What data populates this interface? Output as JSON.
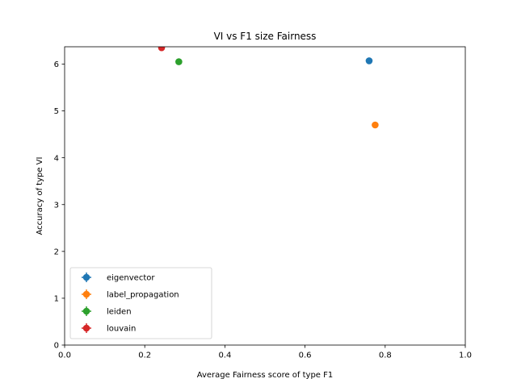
{
  "chart_data": {
    "type": "scatter",
    "title": "VI vs F1 size Fairness",
    "xlabel": "Average Fairness score of type F1",
    "ylabel": "Accuracy of type VI",
    "xlim": [
      0,
      1
    ],
    "ylim": [
      0,
      6.37
    ],
    "xticks": [
      0.0,
      0.2,
      0.4,
      0.6,
      0.8,
      1.0
    ],
    "xtick_labels": [
      "0.0",
      "0.2",
      "0.4",
      "0.6",
      "0.8",
      "1.0"
    ],
    "yticks": [
      0,
      1,
      2,
      3,
      4,
      5,
      6
    ],
    "ytick_labels": [
      "0",
      "1",
      "2",
      "3",
      "4",
      "5",
      "6"
    ],
    "grid": false,
    "legend_position": "lower-left",
    "series": [
      {
        "name": "eigenvector",
        "color": "#1f77b4",
        "points": [
          {
            "x": 0.76,
            "y": 6.07
          }
        ]
      },
      {
        "name": "label_propagation",
        "color": "#ff7f0e",
        "points": [
          {
            "x": 0.775,
            "y": 4.7
          }
        ]
      },
      {
        "name": "leiden",
        "color": "#2ca02c",
        "points": [
          {
            "x": 0.285,
            "y": 6.05
          }
        ]
      },
      {
        "name": "louvain",
        "color": "#d62728",
        "points": [
          {
            "x": 0.242,
            "y": 6.35
          }
        ]
      }
    ]
  }
}
